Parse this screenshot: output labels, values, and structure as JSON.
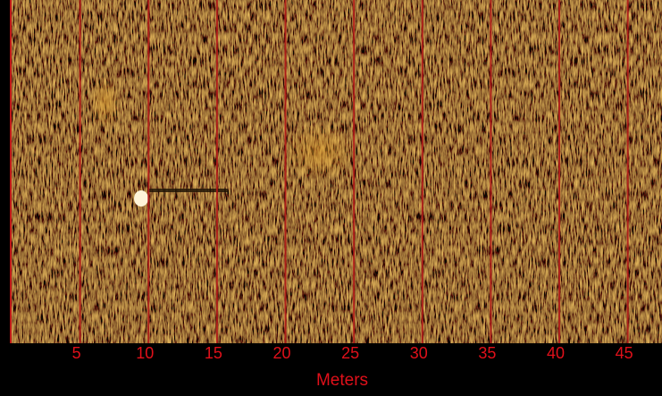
{
  "chart_data": {
    "type": "sonar",
    "x_label": "Meters",
    "xlim": [
      0,
      47.5
    ],
    "xticks": [
      5,
      10,
      15,
      20,
      25,
      30,
      35,
      40,
      45
    ],
    "grid": true,
    "grid_color": "#b01818"
  }
}
